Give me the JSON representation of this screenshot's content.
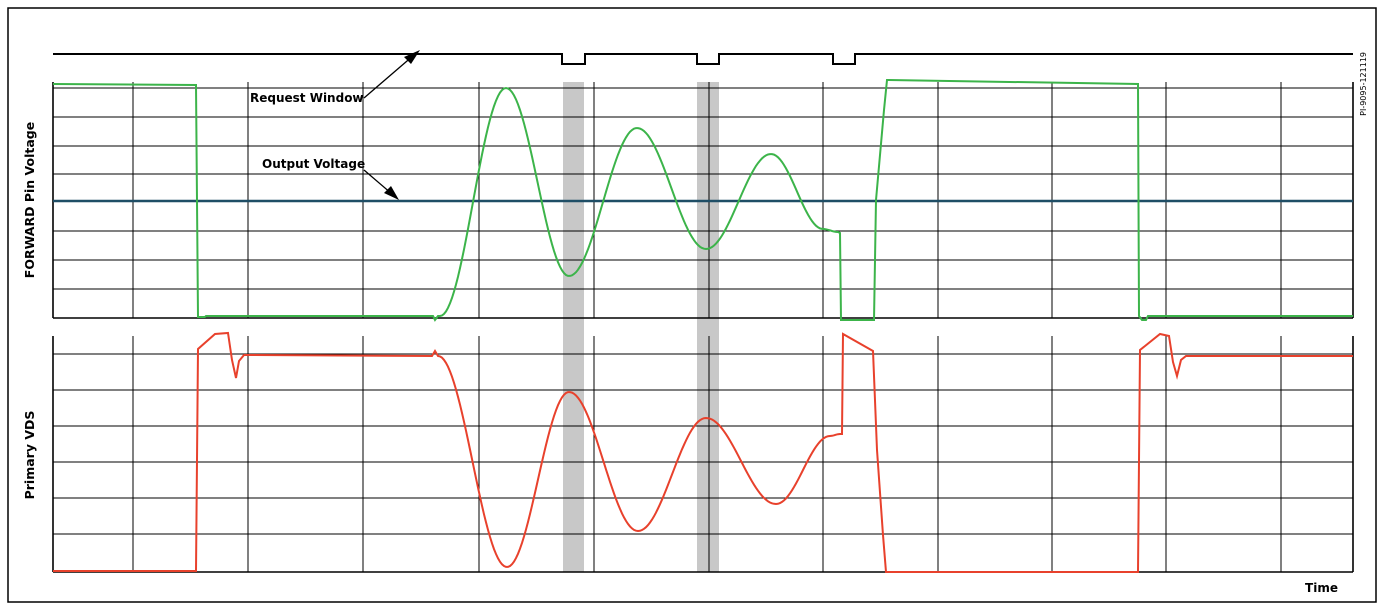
{
  "labels": {
    "request_window": "Request Window",
    "output_voltage": "Output Voltage",
    "forward_axis": "FORWARD Pin Voltage",
    "vds_axis": "Primary VDS",
    "time_axis": "Time",
    "figure_code": "PI-9095-121119"
  },
  "colors": {
    "forward": "#3cb44a",
    "vds": "#e8412c",
    "output": "#1f4e66",
    "shade": "#c8c8c8",
    "grid": "#000000"
  }
}
